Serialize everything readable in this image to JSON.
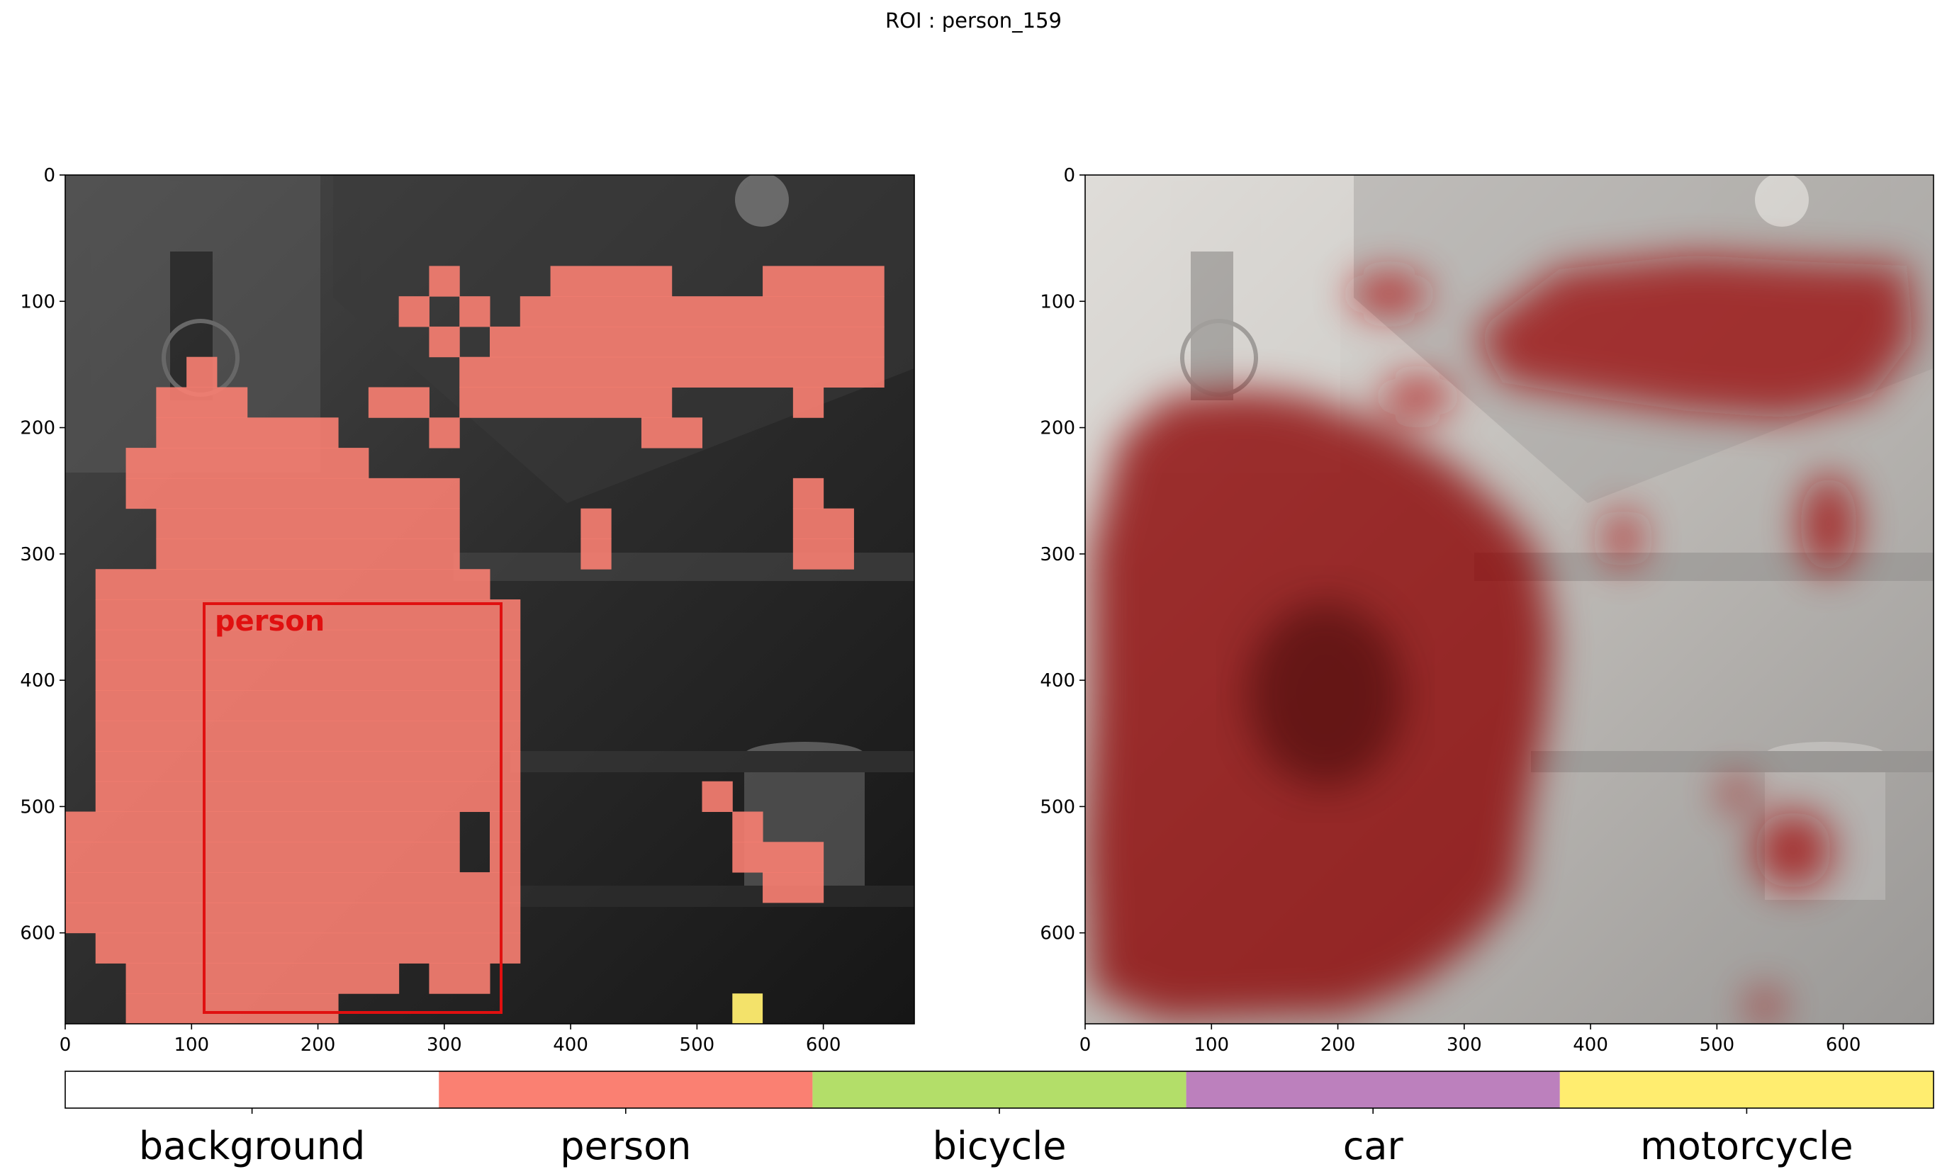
{
  "title": "ROI : person_159",
  "box_label": "person",
  "axes": {
    "x_ticks": [
      "0",
      "100",
      "200",
      "300",
      "400",
      "500",
      "600"
    ],
    "y_ticks": [
      "0",
      "100",
      "200",
      "300",
      "400",
      "500",
      "600"
    ]
  },
  "legend": [
    {
      "label": "background",
      "color": "#ffffff"
    },
    {
      "label": "person",
      "color": "#fa8072"
    },
    {
      "label": "bicycle",
      "color": "#b3de69"
    },
    {
      "label": "car",
      "color": "#bc80bd"
    },
    {
      "label": "motorcycle",
      "color": "#ffed6f"
    }
  ],
  "colors": {
    "mask_person": "#fa8072",
    "mask_motorcycle": "#ffed6f",
    "box": "#e01010",
    "heat": "#8b0000"
  }
}
